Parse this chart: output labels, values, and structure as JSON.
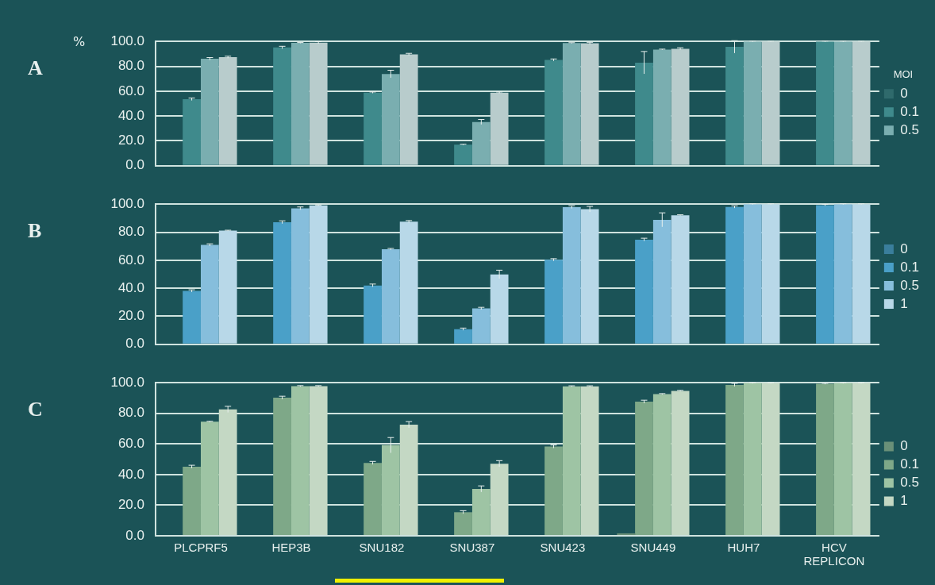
{
  "chart_data": [
    {
      "type": "bar",
      "title": "A",
      "ylabel": "%",
      "legend_title": "MOI",
      "categories": [
        null,
        null,
        null,
        null,
        null,
        null,
        null,
        null
      ],
      "series": [
        {
          "name": "0",
          "color": "#2f6a6c",
          "values": [
            0,
            0,
            0,
            0,
            0,
            0,
            0,
            0
          ]
        },
        {
          "name": "0.1",
          "color": "#3f8a8c",
          "values": [
            53.5,
            95.1,
            58.8,
            17,
            85.1,
            82.9,
            95.6,
            100
          ],
          "errors": [
            1,
            1,
            0.5,
            0.3,
            0.8,
            9,
            5,
            0.3
          ]
        },
        {
          "name": "0.5",
          "color": "#7aaeb0",
          "values": [
            86,
            98.8,
            73.8,
            35.2,
            98.7,
            93.5,
            100,
            100
          ],
          "errors": [
            1,
            0.3,
            3,
            2,
            0.3,
            0.3,
            0.3,
            0.3
          ]
        },
        {
          "color": "#b8cccc",
          "values": [
            87.3,
            99,
            89.6,
            58.8,
            98.5,
            94.1,
            100,
            100
          ],
          "errors": [
            0.8,
            0.8,
            0.8,
            0.5,
            0.8,
            0.8,
            0.3,
            0.3
          ]
        }
      ],
      "ylim": [
        0,
        100
      ],
      "yticks": [
        {
          "value": 0,
          "label": "0.0"
        },
        {
          "value": 20,
          "label": "20.0"
        },
        {
          "value": 40,
          "label": "40.0"
        },
        {
          "value": 60,
          "label": "60.0"
        },
        {
          "value": 80,
          "label": "80.0"
        },
        {
          "value": 100,
          "label": "100.0"
        }
      ],
      "grid": "y",
      "legend": "right",
      "tick_labels": "y"
    },
    {
      "type": "bar",
      "title": "B",
      "categories": [
        null,
        null,
        null,
        null,
        null,
        null,
        null,
        null
      ],
      "series": [
        {
          "name": "0",
          "color": "#3a7e9c",
          "values": [
            0,
            0,
            0,
            0,
            0,
            0,
            0,
            0
          ]
        },
        {
          "name": "0.1",
          "color": "#4aa0c8",
          "values": [
            38.1,
            87.1,
            42,
            10.8,
            60.3,
            74.7,
            98,
            99.3
          ],
          "errors": [
            0.8,
            1,
            1,
            0.8,
            0.8,
            1,
            0.8,
            0.5
          ]
        },
        {
          "name": "0.5",
          "color": "#86bedc",
          "values": [
            70.9,
            97,
            67.9,
            25.6,
            97.9,
            88.8,
            100,
            100
          ],
          "errors": [
            0.8,
            1,
            0.5,
            0.8,
            1,
            5,
            0.3,
            0.3
          ]
        },
        {
          "name": "1",
          "color": "#b8d8e8",
          "values": [
            81.1,
            99.1,
            87.5,
            49.9,
            96.4,
            92.1,
            100,
            100
          ],
          "errors": [
            0.3,
            0.3,
            0.8,
            3,
            2,
            0.3,
            0.3,
            0.3
          ]
        }
      ],
      "ylim": [
        0,
        100
      ],
      "yticks": [
        {
          "value": 0,
          "label": "0.0"
        },
        {
          "value": 20,
          "label": "20.0"
        },
        {
          "value": 40,
          "label": "40.0"
        },
        {
          "value": 60,
          "label": "60.0"
        },
        {
          "value": 80,
          "label": "80.0"
        },
        {
          "value": 100,
          "label": "100.0"
        }
      ],
      "grid": "y",
      "legend": "right",
      "tick_labels": "y"
    },
    {
      "type": "bar",
      "title": "C",
      "categories": [
        "PLCPRF5",
        "HEP3B",
        "SNU182",
        "SNU387",
        "SNU423",
        "SNU449",
        "HUH7",
        "HCV REPLICON"
      ],
      "series": [
        {
          "name": "0",
          "color": "#6a9078",
          "values": [
            0,
            0,
            0,
            0,
            0,
            1.6,
            0,
            0
          ]
        },
        {
          "name": "0.1",
          "color": "#7ea888",
          "values": [
            45.1,
            90.2,
            47.6,
            15.4,
            58.3,
            87.6,
            98.6,
            99.3
          ],
          "errors": [
            1,
            1,
            1,
            1,
            1,
            1,
            1,
            0.3
          ]
        },
        {
          "name": "0.5",
          "color": "#9ec4a4",
          "values": [
            74.5,
            97.8,
            59.2,
            30.6,
            97.7,
            92.6,
            99.8,
            99.8
          ],
          "errors": [
            0.3,
            0.3,
            5,
            2,
            0.3,
            0.3,
            0.3,
            0.3
          ]
        },
        {
          "name": "1",
          "color": "#c4d8c4",
          "values": [
            82.6,
            97.8,
            72.6,
            47.1,
            97.7,
            94.7,
            99.8,
            99.8
          ],
          "errors": [
            2,
            0.3,
            2,
            2,
            0.3,
            0.3,
            0.3,
            0.3
          ]
        }
      ],
      "ylim": [
        0,
        100
      ],
      "yticks": [
        {
          "value": 0,
          "label": "0.0"
        },
        {
          "value": 20,
          "label": "20.0"
        },
        {
          "value": 40,
          "label": "40.0"
        },
        {
          "value": 60,
          "label": "60.0"
        },
        {
          "value": 80,
          "label": "80.0"
        },
        {
          "value": 100,
          "label": "100.0"
        }
      ],
      "grid": "y",
      "legend": "right"
    }
  ]
}
